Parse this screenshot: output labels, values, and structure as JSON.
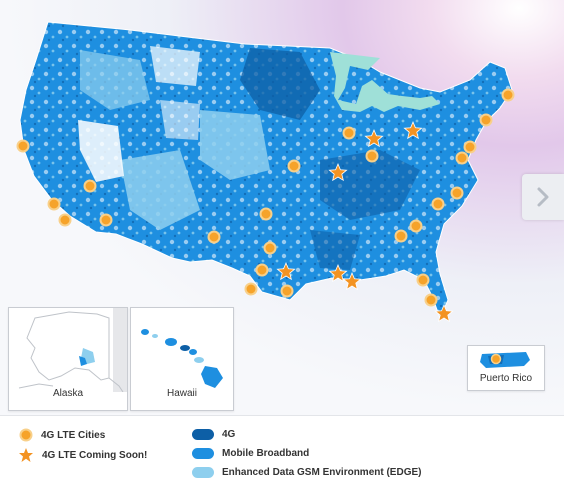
{
  "colors": {
    "4g": "#0d5fa6",
    "mobile_broadband": "#1e8fe0",
    "edge": "#8ecfee",
    "lte_city_fill": "#f6a32a",
    "lte_city_ring": "#f8d08a",
    "coming_soon": "#f39322",
    "lakes": "#9fe0d8",
    "land_blank": "#ffffff"
  },
  "navigation": {
    "next_icon": "chevron-right-icon"
  },
  "insets": [
    {
      "id": "alaska",
      "label": "Alaska"
    },
    {
      "id": "hawaii",
      "label": "Hawaii"
    },
    {
      "id": "puerto-rico",
      "label": "Puerto Rico"
    }
  ],
  "legend": {
    "lte_cities": "4G LTE Cities",
    "lte_coming_soon": "4G LTE Coming Soon!",
    "4g": "4G",
    "mobile_broadband": "Mobile Broadband",
    "edge": "Enhanced Data GSM Environment (EDGE)"
  }
}
